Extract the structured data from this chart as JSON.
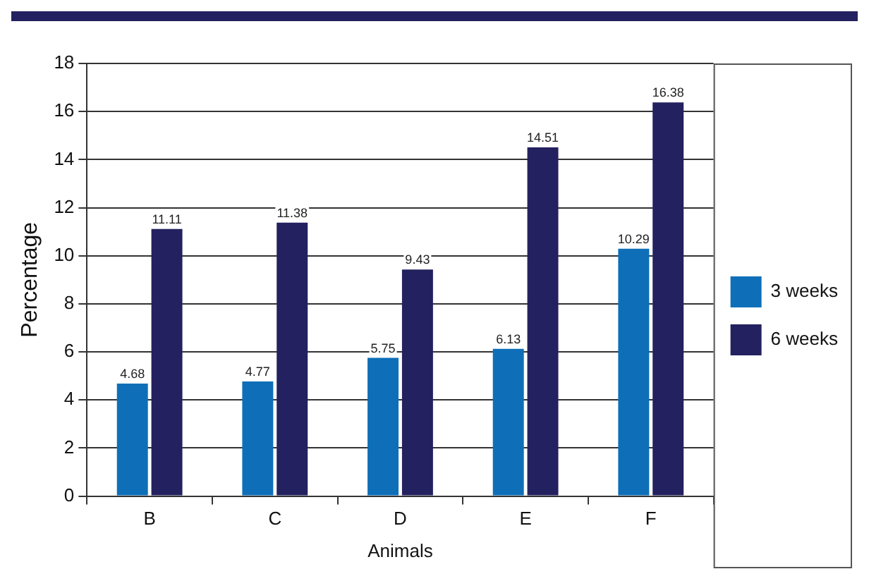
{
  "chart_data": {
    "type": "bar",
    "xlabel": "Animals",
    "ylabel": "Percentage",
    "categories": [
      "B",
      "C",
      "D",
      "E",
      "F"
    ],
    "series": [
      {
        "name": "3 weeks",
        "color": "#0e6fb8",
        "values": [
          4.68,
          4.77,
          5.75,
          6.13,
          10.29
        ]
      },
      {
        "name": "6 weeks",
        "color": "#23215f",
        "values": [
          11.11,
          11.38,
          9.43,
          14.51,
          16.38
        ]
      }
    ],
    "ylim": [
      0,
      18
    ],
    "yticks": [
      0,
      2,
      4,
      6,
      8,
      10,
      12,
      14,
      16,
      18
    ],
    "grid": "y",
    "legend": "right",
    "data_labels": true
  }
}
